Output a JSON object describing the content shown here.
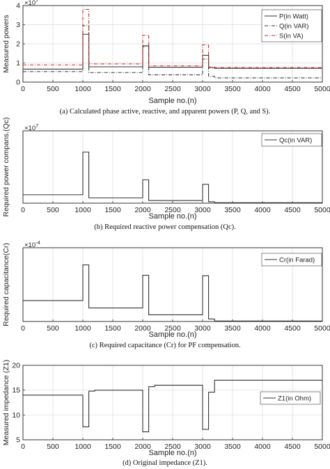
{
  "chart_data": [
    {
      "type": "line",
      "xlabel": "Sample no.(n)",
      "ylabel": "Measured powers",
      "exponent": "10",
      "exponent_power": "7",
      "xlim": [
        0,
        5000
      ],
      "ylim": [
        0,
        4
      ],
      "xticks": [
        0,
        500,
        1000,
        1500,
        2000,
        2500,
        3000,
        3500,
        4000,
        4500,
        5000
      ],
      "yticks": [
        0,
        1,
        2,
        3,
        4
      ],
      "caption": "(a) Calculated phase active, reactive, and apparent powers (P, Q, and S).",
      "legend": "top-right",
      "series": [
        {
          "name": "P(in Watt)",
          "color": "#333333",
          "dash": "",
          "x": [
            0,
            1000,
            1000,
            1100,
            1100,
            2000,
            2000,
            2100,
            2100,
            3000,
            3000,
            3100,
            3100,
            3200,
            3200,
            5000
          ],
          "y": [
            0.68,
            0.68,
            2.5,
            2.5,
            0.8,
            0.8,
            1.9,
            1.9,
            0.78,
            0.78,
            1.4,
            1.4,
            0.75,
            0.75,
            0.72,
            0.72
          ]
        },
        {
          "name": "Q(in VAR)",
          "color": "#333333",
          "dash": "5,2,1,2",
          "x": [
            0,
            1000,
            1000,
            1100,
            1100,
            2000,
            2000,
            2100,
            2100,
            3000,
            3000,
            3100,
            3100,
            3200,
            3200,
            5000
          ],
          "y": [
            0.55,
            0.55,
            2.95,
            2.95,
            0.5,
            0.5,
            1.85,
            1.85,
            0.38,
            0.38,
            1.2,
            1.2,
            0.3,
            0.3,
            0.22,
            0.22
          ]
        },
        {
          "name": "S(in VA)",
          "color": "#d02424",
          "dash": "5,2,1,2",
          "x": [
            0,
            1000,
            1000,
            1100,
            1100,
            2000,
            2000,
            2100,
            2100,
            3000,
            3000,
            3100,
            3100,
            3200,
            3200,
            5000
          ],
          "y": [
            0.9,
            0.9,
            3.8,
            3.8,
            0.95,
            0.95,
            2.45,
            2.45,
            0.85,
            0.85,
            1.95,
            1.95,
            0.8,
            0.8,
            0.76,
            0.76
          ]
        }
      ]
    },
    {
      "type": "line",
      "xlabel": "Sample no.(n)",
      "ylabel": "Required power compans.(Qc)",
      "exponent": "10",
      "exponent_power": "7",
      "xlim": [
        0,
        5000
      ],
      "ylim": [
        0,
        3
      ],
      "xticks": [
        0,
        500,
        1000,
        1500,
        2000,
        2500,
        3000,
        3500,
        4000,
        4500,
        5000
      ],
      "yticks": [],
      "caption": "(b) Required reactive power compensation (Qc).",
      "legend": "top-right",
      "series": [
        {
          "name": "Qc(in VAR)",
          "color": "#333333",
          "dash": "",
          "x": [
            0,
            1000,
            1000,
            1100,
            1100,
            2000,
            2000,
            2100,
            2100,
            3000,
            3000,
            3100,
            3100,
            3200,
            3200,
            5000
          ],
          "y": [
            0.35,
            0.35,
            2.12,
            2.12,
            0.22,
            0.22,
            0.97,
            0.97,
            0.11,
            0.11,
            0.78,
            0.78,
            0.06,
            0.06,
            0.02,
            0.02
          ]
        }
      ]
    },
    {
      "type": "line",
      "xlabel": "Sample no.(n)",
      "ylabel": "Required capacitance(Cr)",
      "exponent": "10",
      "exponent_power": "-4",
      "xlim": [
        0,
        5000
      ],
      "ylim": [
        0,
        3
      ],
      "xticks": [
        0,
        500,
        1000,
        1500,
        2000,
        2500,
        3000,
        3500,
        4000,
        4500,
        5000
      ],
      "yticks": [],
      "caption": "(c) Required capacitance (Cr) for PF compensation.",
      "legend": "top-right",
      "series": [
        {
          "name": "Cr(in Farad)",
          "color": "#333333",
          "dash": "",
          "x": [
            0,
            1000,
            1000,
            1100,
            1100,
            2000,
            2000,
            2100,
            2100,
            3000,
            3000,
            3100,
            3100,
            3200,
            3200,
            5000
          ],
          "y": [
            0.85,
            0.85,
            2.3,
            2.3,
            0.55,
            0.55,
            1.88,
            1.88,
            0.27,
            0.27,
            1.86,
            1.86,
            0.1,
            0.1,
            0.02,
            0.02
          ]
        }
      ]
    },
    {
      "type": "line",
      "xlabel": "Sample no.(n)",
      "ylabel": "Measured impedance (Z1)",
      "exponent": "",
      "exponent_power": "",
      "xlim": [
        0,
        5000
      ],
      "ylim": [
        5,
        20
      ],
      "xticks": [
        0,
        500,
        1000,
        1500,
        2000,
        2500,
        3000,
        3500,
        4000,
        4500,
        5000
      ],
      "yticks": [
        5,
        10,
        15,
        20
      ],
      "caption": "(d) Original impedance (Z1).",
      "legend": "center-right",
      "series": [
        {
          "name": "Z1(in Ohm)",
          "color": "#333333",
          "dash": "",
          "x": [
            0,
            1000,
            1000,
            1100,
            1100,
            1200,
            1200,
            2000,
            2000,
            2100,
            2100,
            2200,
            2200,
            3000,
            3000,
            3100,
            3100,
            3200,
            3200,
            5000
          ],
          "y": [
            14.0,
            14.0,
            7.6,
            7.6,
            14.8,
            14.8,
            15.0,
            15.0,
            6.6,
            6.6,
            15.7,
            15.7,
            16.0,
            16.0,
            7.1,
            7.1,
            14.6,
            14.6,
            17.0,
            17.0
          ]
        }
      ]
    }
  ]
}
